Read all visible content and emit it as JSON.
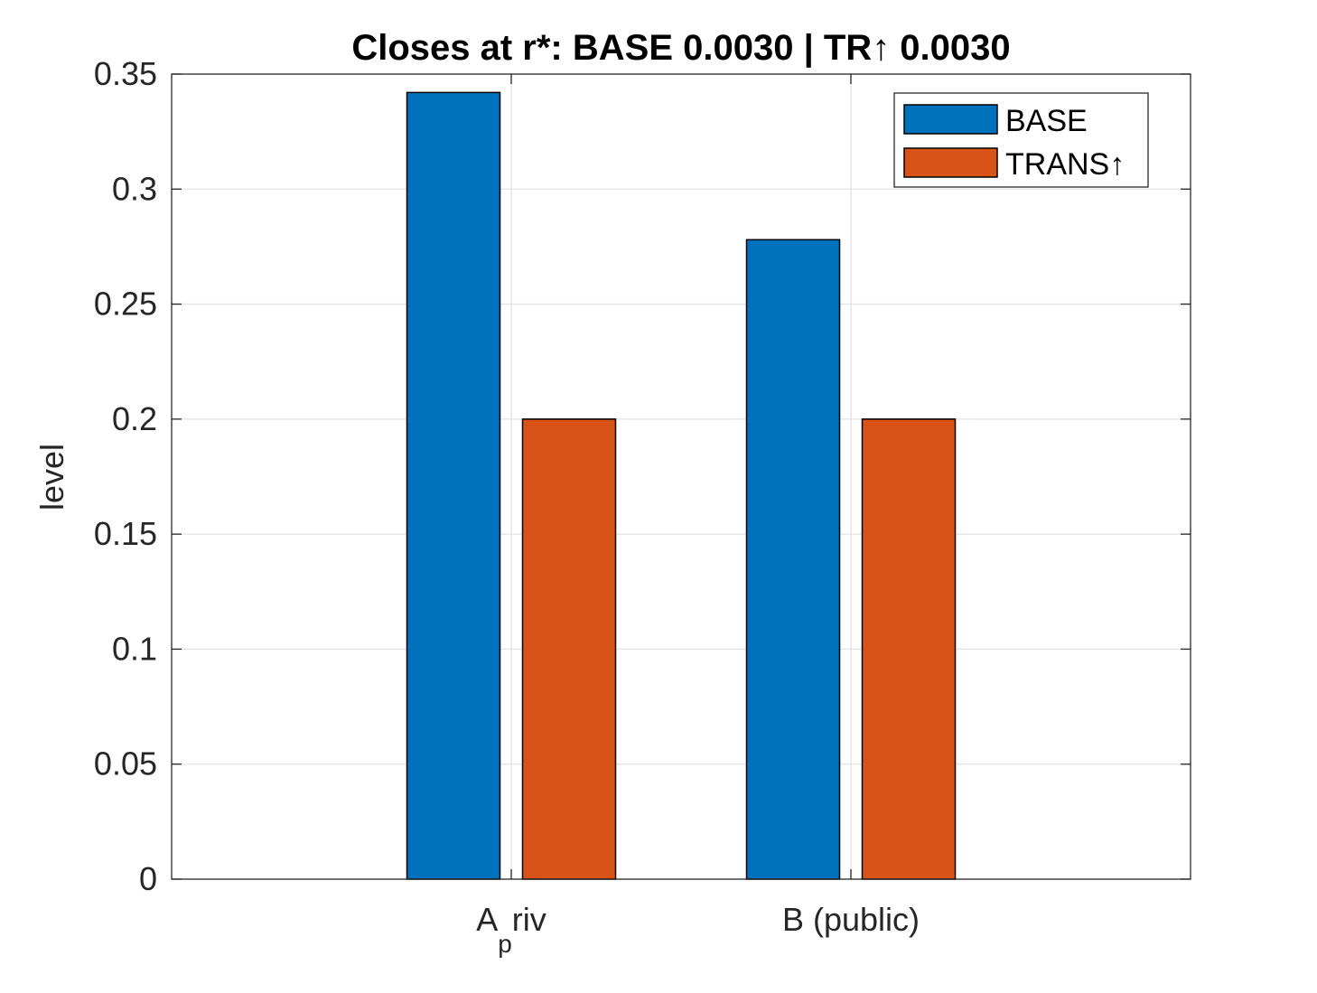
{
  "chart_data": {
    "type": "bar",
    "title": "Closes at r*: BASE 0.0030 | TR↑ 0.0030",
    "ylabel": "level",
    "xlabel": "",
    "categories": [
      {
        "main": "A",
        "sub": "p",
        "tail": "riv"
      },
      {
        "main": "B (public)",
        "sub": "",
        "tail": ""
      }
    ],
    "series": [
      {
        "name": "BASE",
        "values": [
          0.342,
          0.278
        ],
        "color": "#0072BD"
      },
      {
        "name": "TRANS↑",
        "values": [
          0.2,
          0.2
        ],
        "color": "#D95319"
      }
    ],
    "ylim": [
      0,
      0.35
    ],
    "yticks": [
      0,
      0.05,
      0.1,
      0.15,
      0.2,
      0.25,
      0.3,
      0.35
    ],
    "ytick_labels": [
      "0",
      "0.05",
      "0.1",
      "0.15",
      "0.2",
      "0.25",
      "0.3",
      "0.35"
    ],
    "grid": true,
    "legend_position": "top-right"
  }
}
